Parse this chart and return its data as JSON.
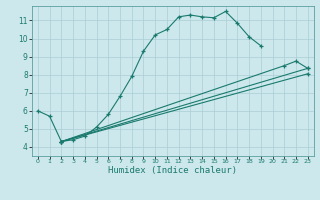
{
  "xlabel": "Humidex (Indice chaleur)",
  "bg_color": "#cce8ec",
  "line_color": "#1a7a6e",
  "grid_color": "#aacdd4",
  "xlim": [
    -0.5,
    23.5
  ],
  "ylim": [
    3.5,
    11.8
  ],
  "xticks": [
    0,
    1,
    2,
    3,
    4,
    5,
    6,
    7,
    8,
    9,
    10,
    11,
    12,
    13,
    14,
    15,
    16,
    17,
    18,
    19,
    20,
    21,
    22,
    23
  ],
  "yticks": [
    4,
    5,
    6,
    7,
    8,
    9,
    10,
    11
  ],
  "series1": [
    [
      0,
      6.0
    ],
    [
      1,
      5.7
    ],
    [
      2,
      4.3
    ],
    [
      3,
      4.4
    ],
    [
      4,
      4.6
    ],
    [
      5,
      5.1
    ],
    [
      6,
      5.8
    ],
    [
      7,
      6.8
    ],
    [
      8,
      7.9
    ],
    [
      9,
      9.3
    ],
    [
      10,
      10.2
    ],
    [
      11,
      10.5
    ],
    [
      12,
      11.2
    ],
    [
      13,
      11.3
    ],
    [
      14,
      11.2
    ],
    [
      15,
      11.15
    ],
    [
      16,
      11.5
    ],
    [
      17,
      10.85
    ],
    [
      18,
      10.1
    ],
    [
      19,
      9.6
    ]
  ],
  "series2": [
    [
      2,
      4.3
    ],
    [
      23,
      8.35
    ]
  ],
  "series3": [
    [
      2,
      4.3
    ],
    [
      21,
      8.5
    ],
    [
      22,
      8.75
    ],
    [
      23,
      8.35
    ]
  ],
  "series4": [
    [
      2,
      4.3
    ],
    [
      23,
      8.05
    ]
  ]
}
